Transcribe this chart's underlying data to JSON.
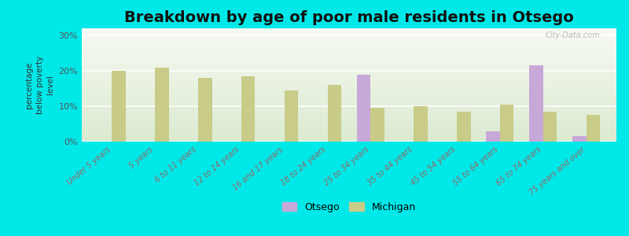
{
  "title": "Breakdown by age of poor male residents in Otsego",
  "ylabel": "percentage\nbelow poverty\nlevel",
  "background_color": "#00e8e8",
  "categories": [
    "Under 5 years",
    "5 years",
    "6 to 11 years",
    "12 to 14 years",
    "16 and 17 years",
    "18 to 24 years",
    "25 to 34 years",
    "35 to 44 years",
    "45 to 54 years",
    "55 to 64 years",
    "65 to 74 years",
    "75 years and over"
  ],
  "otsego_values": [
    0,
    0,
    0,
    0,
    0,
    0,
    19.0,
    0,
    0,
    3.0,
    21.5,
    1.5
  ],
  "michigan_values": [
    20.0,
    21.0,
    18.0,
    18.5,
    14.5,
    16.0,
    9.5,
    10.0,
    8.5,
    10.5,
    8.5,
    7.5
  ],
  "otsego_color": "#c8a8d8",
  "michigan_color": "#c8cc88",
  "bar_width": 0.32,
  "ylim": [
    0,
    32
  ],
  "yticks": [
    0,
    10,
    20,
    30
  ],
  "ytick_labels": [
    "0%",
    "10%",
    "20%",
    "30%"
  ],
  "watermark": "City-Data.com",
  "legend_otsego": "Otsego",
  "legend_michigan": "Michigan",
  "plot_bg_colors": [
    "#e8f0d8",
    "#f5f8ee"
  ],
  "grid_color": "#ffffff",
  "tick_color": "#996666",
  "title_fontsize": 14
}
